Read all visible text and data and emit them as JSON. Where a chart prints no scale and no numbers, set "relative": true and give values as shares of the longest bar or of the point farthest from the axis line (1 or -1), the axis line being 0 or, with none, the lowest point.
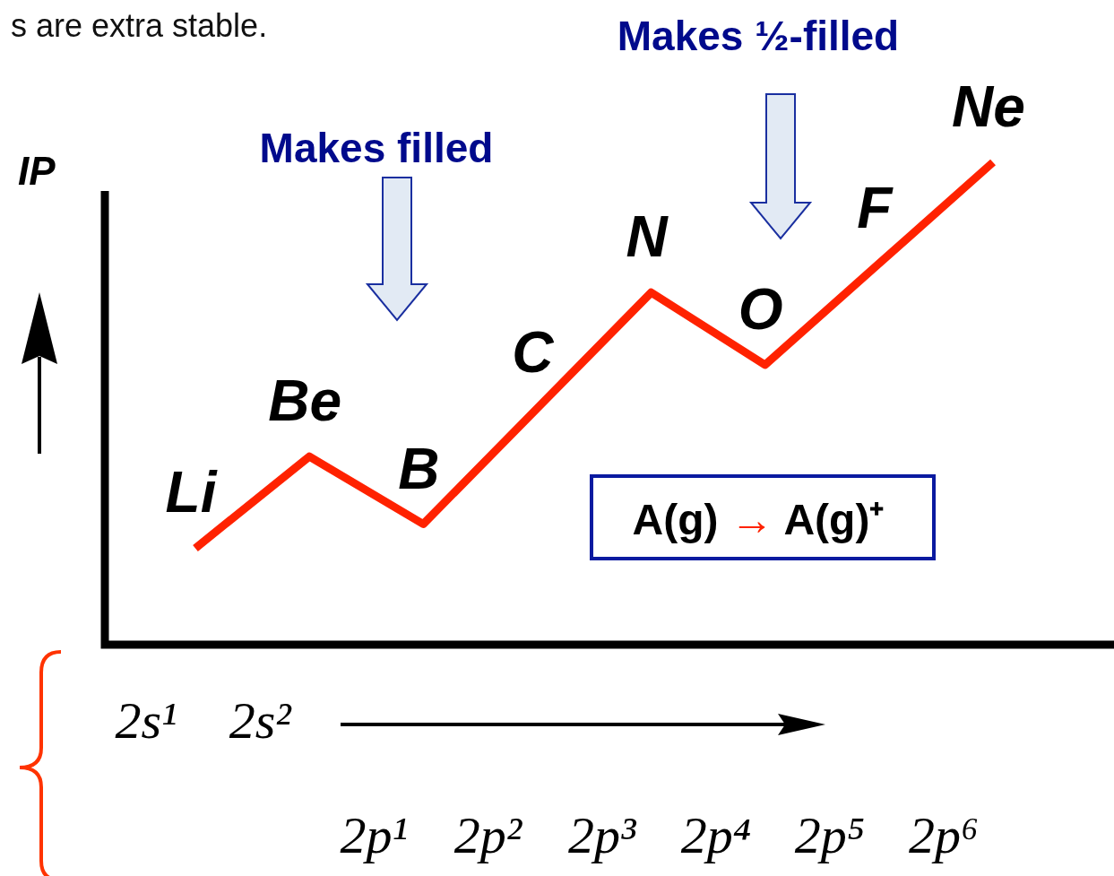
{
  "chart_data": {
    "type": "line",
    "categories": [
      "Li",
      "Be",
      "B",
      "C",
      "N",
      "O",
      "F",
      "Ne"
    ],
    "values": [
      0.2,
      0.39,
      0.25,
      0.49,
      0.73,
      0.58,
      0.79,
      1
    ],
    "color": "#ff2200",
    "relative": true,
    "ylabel": "IP",
    "annotations": [
      "s are extra stable.",
      "Makes filled",
      "Makes ½-filled",
      "A(g) → A(g)⁺",
      "2s¹",
      "2s²",
      "2p¹",
      "2p²",
      "2p³",
      "2p⁴",
      "2p⁵",
      "2p⁶"
    ]
  }
}
